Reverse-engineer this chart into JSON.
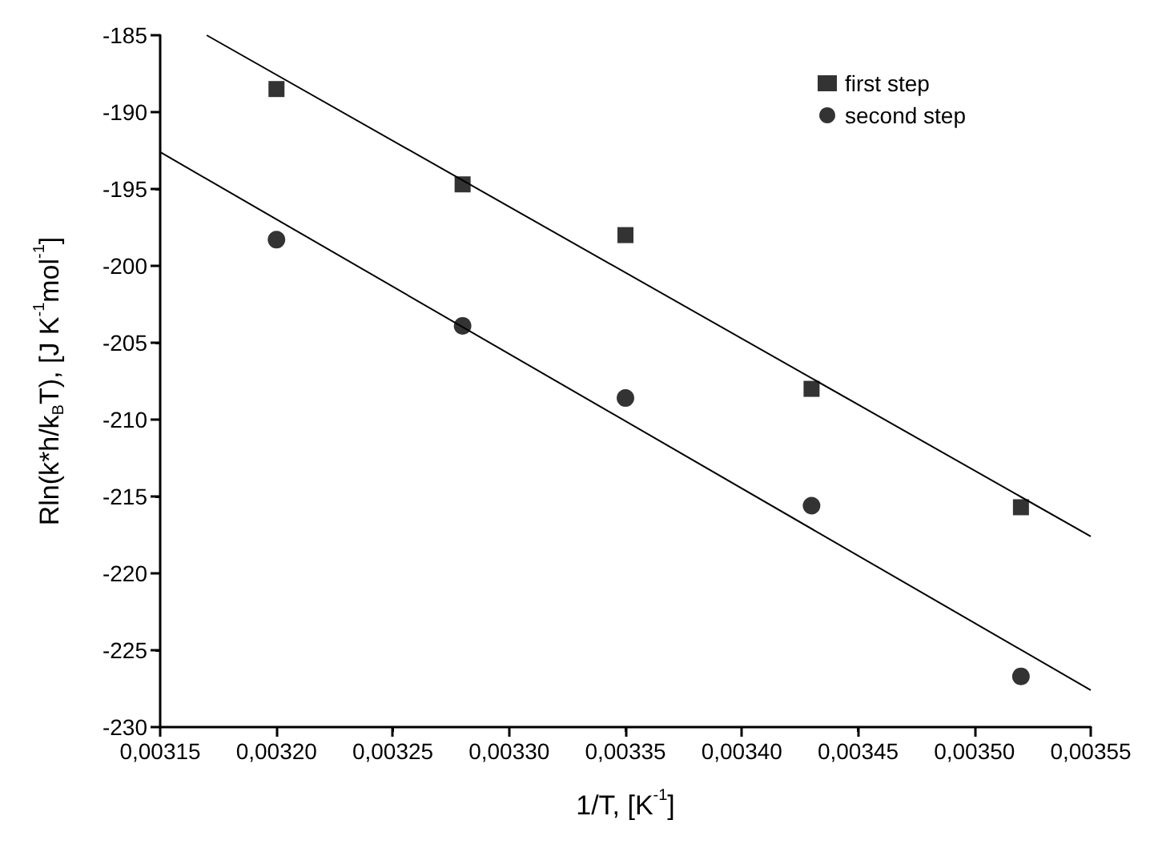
{
  "chart_data": {
    "type": "scatter",
    "xlabel": "1/T, [K$^{-1}$]",
    "ylabel": "Rln(k*h/k$_{B}$T), [J K$^{-1}$mol$^{-1}$]",
    "series": [
      {
        "name": "first step",
        "color": "#000000",
        "marker": "square",
        "x": [
          0.0032,
          0.00328,
          0.00335,
          0.00343,
          0.00352
        ],
        "values": [
          -188.5,
          -194.7,
          -198.0,
          -208.0,
          -215.7
        ]
      },
      {
        "name": "second step",
        "color": "#000000",
        "marker": "circle",
        "x": [
          0.0032,
          0.00328,
          0.00335,
          0.00343,
          0.00352
        ],
        "values": [
          -198.3,
          -203.9,
          -208.6,
          -215.6,
          -226.7
        ]
      },
      {
        "type": "line",
        "color": "#000000",
        "marker": "none",
        "x": [
          0.00317,
          0.00355
        ],
        "values": [
          -185.0,
          -217.6
        ]
      },
      {
        "type": "line",
        "color": "#000000",
        "marker": "none",
        "x": [
          0.00315,
          0.00355
        ],
        "values": [
          -192.6,
          -227.6
        ]
      }
    ],
    "xlim": [
      0.00315,
      0.00355
    ],
    "xticks": [
      {
        "value": 0.00315,
        "label": "0,00315"
      },
      {
        "value": 0.0032,
        "label": "0,00320"
      },
      {
        "value": 0.00325,
        "label": "0,00325"
      },
      {
        "value": 0.0033,
        "label": "0,00330"
      },
      {
        "value": 0.00335,
        "label": "0,00335"
      },
      {
        "value": 0.0034,
        "label": "0,00340"
      },
      {
        "value": 0.00345,
        "label": "0,00345"
      },
      {
        "value": 0.0035,
        "label": "0,00350"
      },
      {
        "value": 0.00355,
        "label": "0,00355"
      }
    ],
    "ylim": [
      -230,
      -185
    ],
    "yticks": [
      -230,
      -225,
      -220,
      -215,
      -210,
      -205,
      -200,
      -195,
      -190,
      -185
    ],
    "grid": false,
    "legend": "top right"
  }
}
